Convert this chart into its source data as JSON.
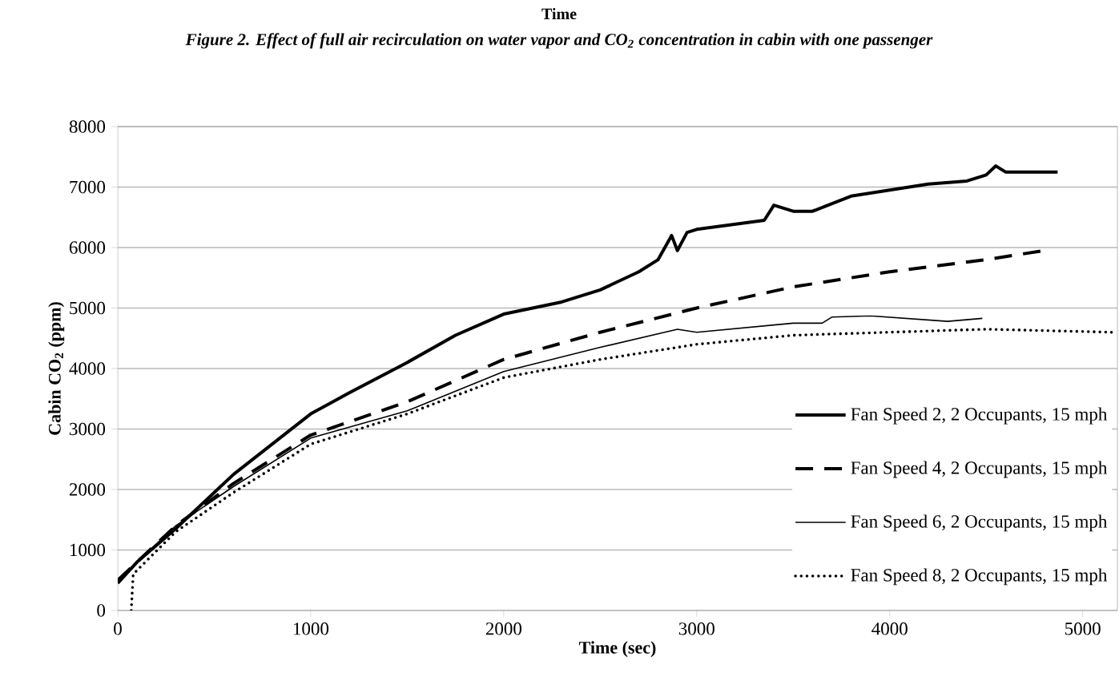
{
  "chart_data": {
    "type": "line",
    "title": "Figure 2. Effect of full air recirculation on water vapor and CO$_{2}$ concentration in cabin with one passenger",
    "annotations": [
      "Time"
    ],
    "xlabel": "Time (sec)",
    "ylabel": "Cabin CO$_{2}$ (ppm)",
    "xlim": [
      0,
      5180
    ],
    "ylim": [
      0,
      8000
    ],
    "xticks": [
      0,
      1000,
      2000,
      3000,
      4000,
      5000
    ],
    "yticks": [
      0,
      1000,
      2000,
      3000,
      4000,
      5000,
      6000,
      7000,
      8000
    ],
    "grid": "y",
    "legend": "bottom right",
    "series": [
      {
        "name": "Fan Speed 2, 2 Occupants, 15 mph",
        "color": "#000000",
        "line_style": "solid",
        "x": [
          0,
          100,
          300,
          500,
          600,
          1000,
          1200,
          1500,
          1750,
          2000,
          2300,
          2500,
          2700,
          2800,
          2870,
          2900,
          2950,
          3000,
          3350,
          3400,
          3500,
          3600,
          3800,
          4000,
          4200,
          4400,
          4500,
          4550,
          4600,
          4700,
          4870
        ],
        "values": [
          450,
          800,
          1350,
          1950,
          2250,
          3250,
          3600,
          4100,
          4550,
          4900,
          5100,
          5300,
          5600,
          5800,
          6200,
          5950,
          6250,
          6300,
          6450,
          6700,
          6600,
          6600,
          6850,
          6950,
          7050,
          7100,
          7200,
          7350,
          7250,
          7250,
          7250
        ]
      },
      {
        "name": "Fan Speed 4, 2 Occupants, 15 mph",
        "color": "#000000",
        "line_style": "dashed",
        "x": [
          0,
          300,
          600,
          1000,
          1500,
          2000,
          2500,
          3000,
          3500,
          4000,
          4500,
          4800
        ],
        "values": [
          500,
          1400,
          2100,
          2900,
          3450,
          4150,
          4600,
          5000,
          5350,
          5600,
          5800,
          5950
        ]
      },
      {
        "name": "Fan Speed 6, 2 Occupants, 15 mph",
        "color": "#000000",
        "line_style": "solid",
        "x": [
          0,
          300,
          600,
          1000,
          1500,
          2000,
          2500,
          2900,
          3000,
          3500,
          3650,
          3700,
          3900,
          4300,
          4480
        ],
        "values": [
          500,
          1400,
          2050,
          2850,
          3300,
          3950,
          4350,
          4650,
          4600,
          4750,
          4750,
          4850,
          4870,
          4780,
          4830
        ]
      },
      {
        "name": "Fan Speed 8, 2 Occupants, 15 mph",
        "color": "#000000",
        "line_style": "dotted",
        "x": [
          70,
          80,
          300,
          600,
          1000,
          1500,
          2000,
          2500,
          3000,
          3500,
          4000,
          4500,
          5150
        ],
        "values": [
          0,
          600,
          1300,
          1950,
          2750,
          3250,
          3850,
          4150,
          4400,
          4550,
          4600,
          4650,
          4600
        ]
      }
    ]
  }
}
